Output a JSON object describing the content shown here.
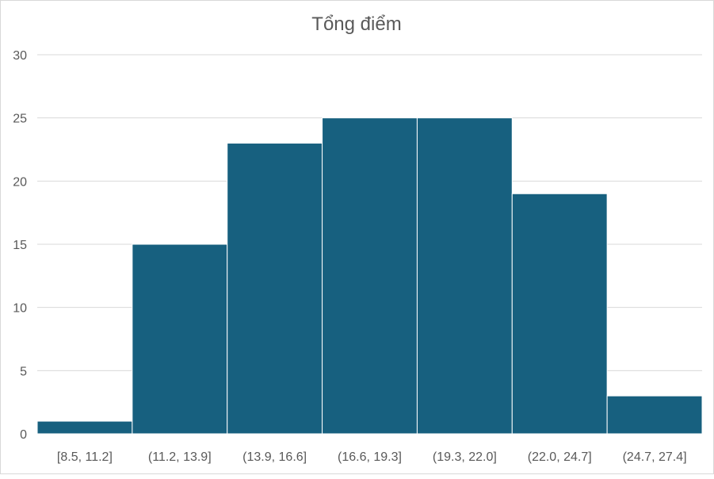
{
  "chart_data": {
    "type": "bar",
    "title": "Tổng điểm",
    "categories": [
      "[8.5, 11.2]",
      "(11.2, 13.9]",
      "(13.9, 16.6]",
      "(16.6, 19.3]",
      "(19.3, 22.0]",
      "(22.0, 24.7]",
      "(24.7, 27.4]"
    ],
    "values": [
      1,
      15,
      23,
      25,
      25,
      19,
      3
    ],
    "xlabel": "",
    "ylabel": "",
    "ylim": [
      0,
      30
    ],
    "yticks": [
      0,
      5,
      10,
      15,
      20,
      25,
      30
    ],
    "grid": true,
    "legend": "none",
    "bar_color": "#17607f"
  }
}
